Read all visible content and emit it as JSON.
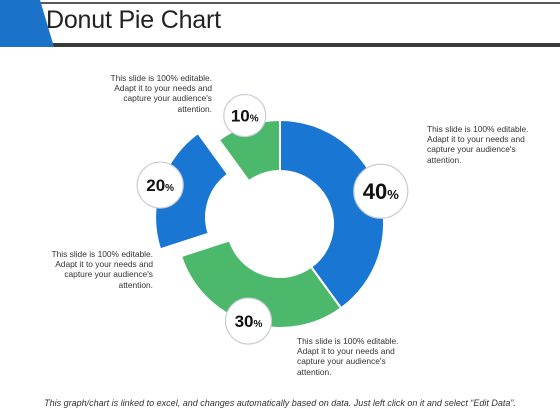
{
  "title": "Donut Pie Chart",
  "colors": {
    "blue": "#1976d2",
    "green": "#4cb86b",
    "accent": "#1a73c9",
    "rule": "#3a3a3a"
  },
  "callout_text": "This slide is 100% editable. Adapt it to your needs and capture your audience's attention.",
  "callouts": [
    {
      "line1": "This slide is 100% editable.",
      "line2": "Adapt it to your needs and",
      "line3": "capture your audience's",
      "line4": "attention."
    },
    {
      "line1": "This slide is 100% editable.",
      "line2": "Adapt it to your needs and",
      "line3": "capture your audience's",
      "line4": "attention."
    },
    {
      "line1": "This slide is 100% editable.",
      "line2": "Adapt it to your needs and",
      "line3": "capture your audience's",
      "line4": "attention."
    },
    {
      "line1": "This slide is 100% editable.",
      "line2": "Adapt it to your needs and",
      "line3": "capture your audience's",
      "line4": "attention."
    }
  ],
  "footer": "This graph/chart is linked to excel, and changes automatically based on data. Just left click on it and select “Edit Data”.",
  "chart_data": {
    "type": "pie",
    "subtype": "donut",
    "categories": [
      "",
      "",
      "",
      ""
    ],
    "values": [
      40,
      30,
      20,
      10
    ],
    "labels": [
      "40",
      "30",
      "20",
      "10"
    ],
    "unit": "%",
    "colors": [
      "#1976d2",
      "#4cb86b",
      "#1976d2",
      "#4cb86b"
    ],
    "exploded": [
      false,
      false,
      true,
      false
    ]
  }
}
